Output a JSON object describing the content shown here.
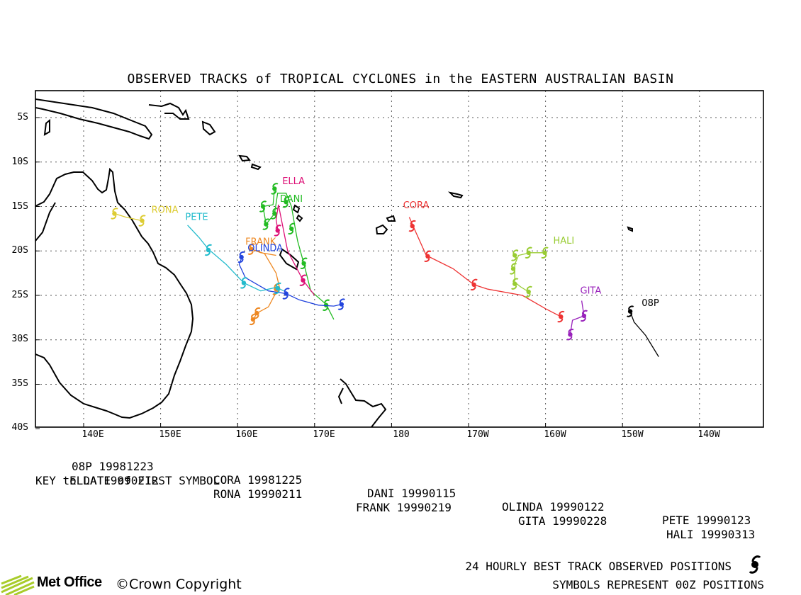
{
  "title": "OBSERVED TRACKS of TROPICAL CYCLONES in the EASTERN AUSTRALIAN BASIN",
  "lat_labels": [
    "5S",
    "10S",
    "15S",
    "20S",
    "25S",
    "30S",
    "35S",
    "40S"
  ],
  "lon_labels": [
    "140E",
    "150E",
    "160E",
    "170E",
    "180",
    "170W",
    "160W",
    "150W",
    "140W"
  ],
  "grid": "dotted",
  "storms": [
    {
      "name": "08P",
      "first_date": "19981223",
      "color": "#000000",
      "track": [
        [
          -149.1,
          -26.6
        ],
        [
          -148.5,
          -28.0
        ],
        [
          -147.0,
          -29.5
        ],
        [
          -145.3,
          -31.9
        ]
      ]
    },
    {
      "name": "CORA",
      "first_date": "19981225",
      "color": "#ee3333",
      "track": [
        [
          -177.7,
          -16.2
        ],
        [
          -176.9,
          -17.8
        ],
        [
          -175.5,
          -20.5
        ],
        [
          -172.0,
          -22.0
        ],
        [
          -169.3,
          -23.8
        ],
        [
          -167.5,
          -24.3
        ],
        [
          -163.0,
          -25.0
        ],
        [
          -160.0,
          -26.5
        ],
        [
          -158.0,
          -27.4
        ]
      ]
    },
    {
      "name": "DANI",
      "first_date": "19990115",
      "color": "#22bb22",
      "track": [
        [
          164.8,
          -13.0
        ],
        [
          164.6,
          -14.8
        ],
        [
          163.3,
          -15.0
        ],
        [
          163.7,
          -17.0
        ],
        [
          164.8,
          -15.8
        ],
        [
          165.2,
          -13.5
        ],
        [
          166.3,
          -13.5
        ],
        [
          167.0,
          -15.0
        ],
        [
          167.5,
          -17.5
        ],
        [
          167.8,
          -18.9
        ],
        [
          168.6,
          -21.4
        ],
        [
          169.5,
          -24.5
        ],
        [
          171.5,
          -26.0
        ],
        [
          172.5,
          -27.7
        ]
      ]
    },
    {
      "name": "ELLA",
      "first_date": "19990212",
      "color": "#dd1177",
      "track": [
        [
          165.2,
          -17.5
        ],
        [
          165.0,
          -16.5
        ],
        [
          165.3,
          -14.8
        ],
        [
          166.5,
          -20.0
        ],
        [
          168.5,
          -23.3
        ],
        [
          170.0,
          -25.0
        ]
      ]
    },
    {
      "name": "FRANK",
      "first_date": "19990219",
      "color": "#ee8822",
      "track": [
        [
          165.0,
          -20.5
        ],
        [
          163.0,
          -20.2
        ],
        [
          161.8,
          -19.8
        ],
        [
          163.5,
          -20.3
        ],
        [
          165.0,
          -22.5
        ],
        [
          165.5,
          -24.3
        ],
        [
          164.8,
          -25.0
        ],
        [
          164.0,
          -26.3
        ],
        [
          162.5,
          -27.0
        ],
        [
          162.0,
          -27.8
        ]
      ]
    },
    {
      "name": "GITA",
      "first_date": "19990228",
      "color": "#9922bb",
      "track": [
        [
          -155.3,
          -25.6
        ],
        [
          -155.0,
          -27.3
        ],
        [
          -156.5,
          -27.8
        ],
        [
          -156.8,
          -29.4
        ]
      ]
    },
    {
      "name": "HALI",
      "first_date": "19990313",
      "color": "#99cc33",
      "track": [
        [
          -160.2,
          -20.2
        ],
        [
          -162.0,
          -20.2
        ],
        [
          -163.5,
          -20.5
        ],
        [
          -164.0,
          -21.5
        ],
        [
          -164.0,
          -23.5
        ],
        [
          -163.3,
          -24.0
        ],
        [
          -162.2,
          -24.6
        ]
      ]
    },
    {
      "name": "OLINDA",
      "first_date": "19990122",
      "color": "#2244dd",
      "track": [
        [
          160.6,
          -20.6
        ],
        [
          160.2,
          -21.5
        ],
        [
          161.0,
          -23.0
        ],
        [
          164.0,
          -24.5
        ],
        [
          166.3,
          -24.8
        ],
        [
          168.0,
          -25.5
        ],
        [
          170.5,
          -26.1
        ],
        [
          172.5,
          -26.2
        ],
        [
          173.5,
          -26.0
        ]
      ]
    },
    {
      "name": "PETE",
      "first_date": "19990123",
      "color": "#22bbcc",
      "track": [
        [
          153.5,
          -17.1
        ],
        [
          155.0,
          -18.5
        ],
        [
          156.2,
          -19.8
        ],
        [
          158.5,
          -21.5
        ],
        [
          160.8,
          -23.6
        ],
        [
          163.0,
          -24.5
        ],
        [
          165.0,
          -24.1
        ],
        [
          166.0,
          -24.5
        ]
      ]
    },
    {
      "name": "RONA",
      "first_date": "19990211",
      "color": "#ddcc33",
      "track": [
        [
          144.0,
          -15.8
        ],
        [
          145.5,
          -16.2
        ],
        [
          147.6,
          -16.6
        ]
      ]
    }
  ],
  "storm_symbols": [
    [
      "08P",
      [
        [
          -149.0,
          -26.8
        ]
      ]
    ],
    [
      "CORA",
      [
        [
          -177.3,
          -17.2
        ],
        [
          -175.3,
          -20.6
        ],
        [
          -169.3,
          -23.8
        ],
        [
          -158.0,
          -27.4
        ]
      ]
    ],
    [
      "DANI",
      [
        [
          164.8,
          -13.0
        ],
        [
          163.3,
          -15.0
        ],
        [
          163.7,
          -17.0
        ],
        [
          164.8,
          -15.8
        ],
        [
          166.3,
          -14.5
        ],
        [
          167.0,
          -17.5
        ],
        [
          168.6,
          -21.4
        ],
        [
          171.5,
          -26.1
        ]
      ]
    ],
    [
      "ELLA",
      [
        [
          165.2,
          -17.7
        ],
        [
          168.5,
          -23.3
        ]
      ]
    ],
    [
      "FRANK",
      [
        [
          161.8,
          -19.8
        ],
        [
          165.0,
          -24.3
        ],
        [
          162.5,
          -27.0
        ],
        [
          162.0,
          -27.7
        ]
      ]
    ],
    [
      "GITA",
      [
        [
          -155.0,
          -27.3
        ],
        [
          -156.8,
          -29.4
        ]
      ]
    ],
    [
      "HALI",
      [
        [
          -160.1,
          -20.2
        ],
        [
          -162.2,
          -20.2
        ],
        [
          -164.0,
          -20.5
        ],
        [
          -164.2,
          -22.0
        ],
        [
          -164.0,
          -23.7
        ],
        [
          -162.2,
          -24.6
        ]
      ]
    ],
    [
      "OLINDA",
      [
        [
          160.5,
          -20.7
        ],
        [
          166.3,
          -24.8
        ],
        [
          173.5,
          -26.0
        ]
      ]
    ],
    [
      "PETE",
      [
        [
          156.2,
          -19.9
        ],
        [
          160.8,
          -23.6
        ],
        [
          165.2,
          -24.2
        ]
      ]
    ],
    [
      "RONA",
      [
        [
          144.0,
          -15.8
        ],
        [
          147.6,
          -16.6
        ]
      ]
    ]
  ],
  "label_positions": {
    "08P": [
      -147.5,
      -26.2
    ],
    "CORA": [
      -178.5,
      -15.2
    ],
    "DANI": [
      165.5,
      -14.5
    ],
    "ELLA": [
      165.8,
      -12.5
    ],
    "FRANK": [
      161.0,
      -19.3
    ],
    "GITA": [
      -155.5,
      -24.8
    ],
    "HALI": [
      -159.0,
      -19.2
    ],
    "OLINDA": [
      161.3,
      -20.0
    ],
    "PETE": [
      153.2,
      -16.5
    ],
    "RONA": [
      148.8,
      -15.7
    ]
  },
  "key_rows": [
    [
      "08P 19981223",
      "CORA 19981225",
      "DANI 19990115",
      "OLINDA 19990122",
      "PETE 19990123"
    ],
    [
      "ELLA 19990212",
      "RONA 19990211",
      "FRANK 19990219",
      "GITA 19990228",
      "HALI 19990313"
    ]
  ],
  "key_note": "KEY to DATE of FIRST SYMBOL",
  "footer": {
    "line1": "24 HOURLY BEST TRACK OBSERVED POSITIONS",
    "line2": "SYMBOLS REPRESENT 00Z POSITIONS",
    "logo_text": "Met Office",
    "copyright": "©Crown Copyright"
  }
}
